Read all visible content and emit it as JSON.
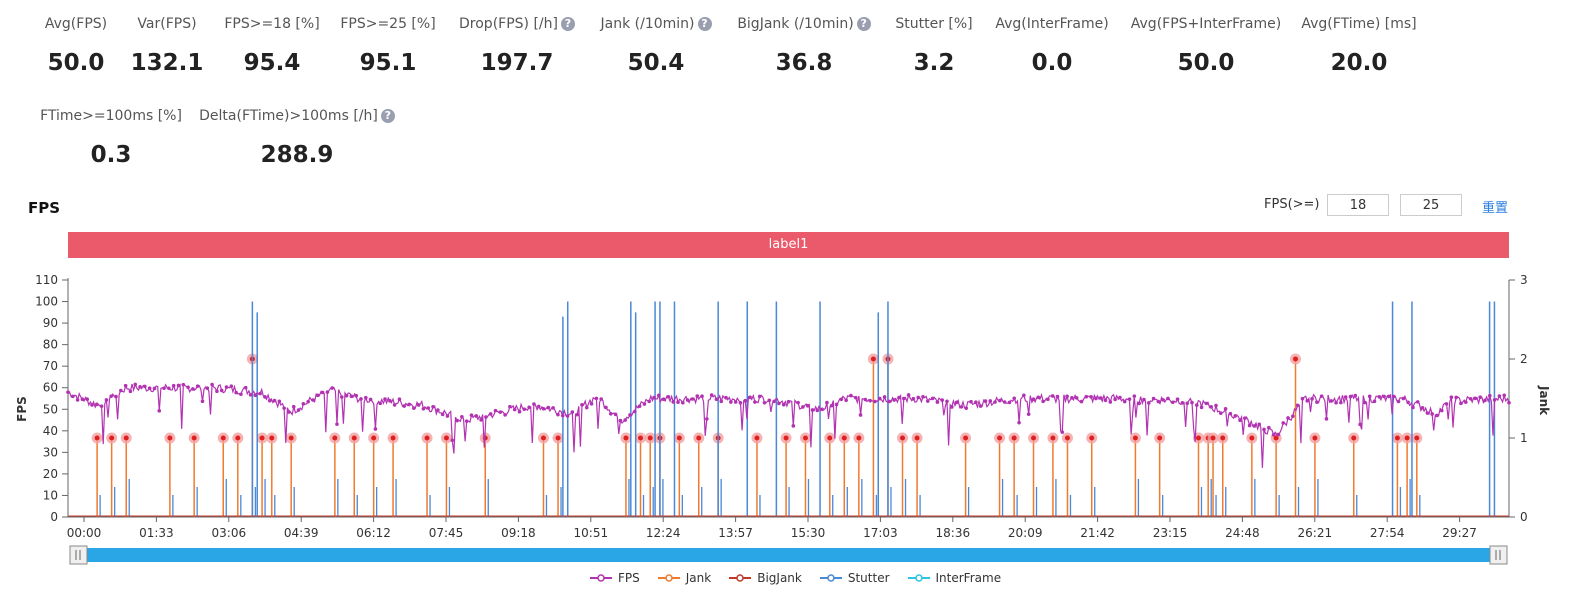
{
  "stats": [
    {
      "label": "Avg(FPS)",
      "value": "50.0",
      "help": false
    },
    {
      "label": "Var(FPS)",
      "value": "132.1",
      "help": false
    },
    {
      "label": "FPS>=18 [%]",
      "value": "95.4",
      "help": false
    },
    {
      "label": "FPS>=25 [%]",
      "value": "95.1",
      "help": false
    },
    {
      "label": "Drop(FPS) [/h]",
      "value": "197.7",
      "help": true
    },
    {
      "label": "Jank (/10min)",
      "value": "50.4",
      "help": true
    },
    {
      "label": "BigJank (/10min)",
      "value": "36.8",
      "help": true
    },
    {
      "label": "Stutter [%]",
      "value": "3.2",
      "help": false
    },
    {
      "label": "Avg(InterFrame)",
      "value": "0.0",
      "help": false
    },
    {
      "label": "Avg(FPS+InterFrame)",
      "value": "50.0",
      "help": false
    },
    {
      "label": "Avg(FTime) [ms]",
      "value": "20.0",
      "help": false
    },
    {
      "label": "FTime>=100ms [%]",
      "value": "0.3",
      "help": false
    },
    {
      "label": "Delta(FTime)>100ms [/h]",
      "value": "288.9",
      "help": true
    }
  ],
  "help_icon": "?",
  "chart_title": "FPS",
  "fps_threshold": {
    "label": "FPS(>=)",
    "low": "18",
    "high": "25",
    "reset_label": "重置"
  },
  "label_bar": "label1",
  "colors": {
    "fps": "#b233b2",
    "jank": "#f07a2e",
    "bigjank": "#c0392b",
    "stutter": "#4a88d8",
    "interframe": "#2ec4e6",
    "label_bar": "#eb5a6a",
    "jank_marker": "#f4a0a0",
    "scroll": "#2aa6e6"
  },
  "chart_data": {
    "type": "line",
    "x_ticks": [
      "00:00",
      "01:33",
      "03:06",
      "04:39",
      "06:12",
      "07:45",
      "09:18",
      "10:51",
      "12:24",
      "13:57",
      "15:30",
      "17:03",
      "18:36",
      "20:09",
      "21:42",
      "23:15",
      "24:48",
      "26:21",
      "27:54",
      "29:27"
    ],
    "y_left": {
      "label": "FPS",
      "ticks": [
        0,
        10,
        20,
        30,
        40,
        50,
        60,
        70,
        80,
        90,
        100,
        110
      ],
      "range": [
        0,
        110
      ]
    },
    "y_right": {
      "label": "Jank",
      "ticks": [
        0,
        1,
        2,
        3
      ],
      "range": [
        0,
        3
      ]
    },
    "series": [
      {
        "name": "FPS",
        "segments": [
          [
            0,
            58
          ],
          [
            0.6,
            52
          ],
          [
            1.2,
            60
          ],
          [
            3.0,
            60
          ],
          [
            4.0,
            58
          ],
          [
            4.6,
            49
          ],
          [
            5.4,
            59
          ],
          [
            6.0,
            55
          ],
          [
            7.3,
            52
          ],
          [
            8.2,
            45
          ],
          [
            9.6,
            52
          ],
          [
            10.4,
            48
          ],
          [
            10.9,
            56
          ],
          [
            11.4,
            45
          ],
          [
            12.0,
            55
          ],
          [
            14.5,
            55
          ],
          [
            15.5,
            50
          ],
          [
            16.0,
            55
          ],
          [
            17.5,
            55
          ],
          [
            18.5,
            52
          ],
          [
            19.6,
            55
          ],
          [
            21.6,
            55
          ],
          [
            23.2,
            54
          ],
          [
            24.3,
            45
          ],
          [
            24.9,
            38
          ],
          [
            25.5,
            55
          ],
          [
            27.5,
            55
          ],
          [
            28.2,
            48
          ],
          [
            28.5,
            54
          ],
          [
            29.7,
            55
          ]
        ]
      },
      {
        "name": "Jank",
        "spikes": [
          [
            0.6,
            1
          ],
          [
            0.9,
            1
          ],
          [
            1.2,
            1
          ],
          [
            2.1,
            1
          ],
          [
            2.6,
            1
          ],
          [
            3.2,
            1
          ],
          [
            3.5,
            1
          ],
          [
            3.8,
            2
          ],
          [
            4.0,
            1
          ],
          [
            4.2,
            1
          ],
          [
            4.6,
            1
          ],
          [
            5.5,
            1
          ],
          [
            5.9,
            1
          ],
          [
            6.3,
            1
          ],
          [
            6.7,
            1
          ],
          [
            7.4,
            1
          ],
          [
            7.8,
            1
          ],
          [
            8.6,
            1
          ],
          [
            9.8,
            1
          ],
          [
            10.1,
            1
          ],
          [
            11.5,
            1
          ],
          [
            11.8,
            1
          ],
          [
            12.0,
            1
          ],
          [
            12.2,
            1
          ],
          [
            12.6,
            1
          ],
          [
            13.0,
            1
          ],
          [
            13.4,
            1
          ],
          [
            14.2,
            1
          ],
          [
            14.8,
            1
          ],
          [
            15.2,
            1
          ],
          [
            15.7,
            1
          ],
          [
            16.0,
            1
          ],
          [
            16.3,
            1
          ],
          [
            16.6,
            2
          ],
          [
            16.9,
            2
          ],
          [
            17.2,
            1
          ],
          [
            17.5,
            1
          ],
          [
            18.5,
            1
          ],
          [
            19.2,
            1
          ],
          [
            19.5,
            1
          ],
          [
            19.9,
            1
          ],
          [
            20.3,
            1
          ],
          [
            20.6,
            1
          ],
          [
            21.1,
            1
          ],
          [
            22.0,
            1
          ],
          [
            22.5,
            1
          ],
          [
            23.3,
            1
          ],
          [
            23.5,
            1
          ],
          [
            23.6,
            1
          ],
          [
            23.8,
            1
          ],
          [
            24.4,
            1
          ],
          [
            24.9,
            1
          ],
          [
            25.3,
            2
          ],
          [
            25.7,
            1
          ],
          [
            26.5,
            1
          ],
          [
            27.4,
            1
          ],
          [
            27.6,
            1
          ],
          [
            27.8,
            1
          ]
        ]
      },
      {
        "name": "BigJank",
        "values": []
      },
      {
        "name": "Stutter",
        "spikes": [
          [
            3.8,
            100
          ],
          [
            3.9,
            95
          ],
          [
            10.2,
            93
          ],
          [
            10.3,
            100
          ],
          [
            11.6,
            100
          ],
          [
            11.7,
            95
          ],
          [
            12.1,
            100
          ],
          [
            12.2,
            100
          ],
          [
            12.5,
            100
          ],
          [
            13.4,
            100
          ],
          [
            14.0,
            100
          ],
          [
            14.6,
            100
          ],
          [
            15.5,
            100
          ],
          [
            16.7,
            95
          ],
          [
            16.9,
            100
          ],
          [
            27.3,
            100
          ],
          [
            27.7,
            100
          ],
          [
            29.3,
            100
          ],
          [
            29.4,
            100
          ]
        ]
      },
      {
        "name": "InterFrame",
        "values": []
      }
    ],
    "legend": [
      "FPS",
      "Jank",
      "BigJank",
      "Stutter",
      "InterFrame"
    ],
    "legend_position": "bottom"
  }
}
